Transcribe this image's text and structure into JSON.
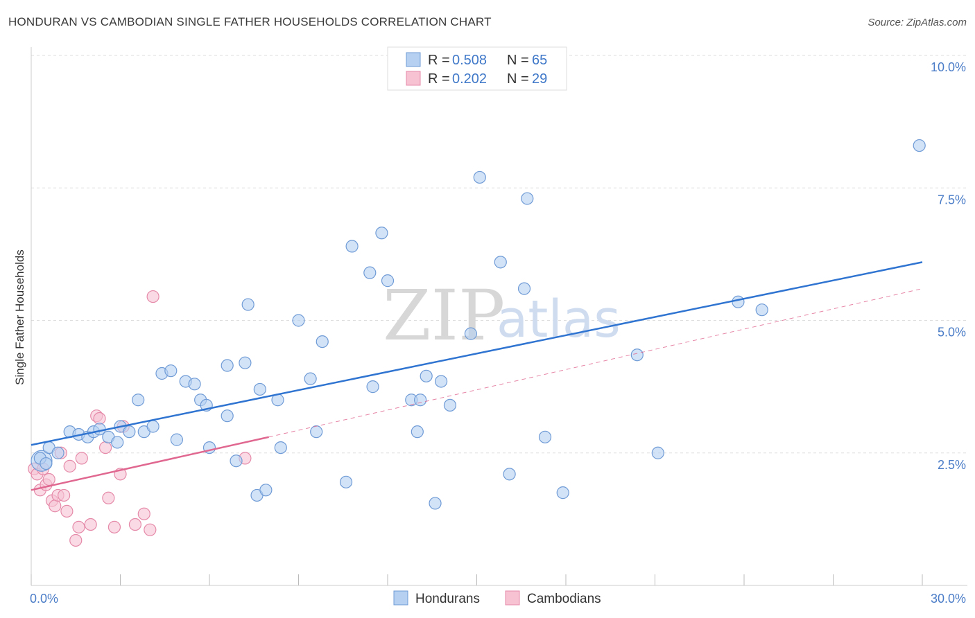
{
  "header": {
    "title": "HONDURAN VS CAMBODIAN SINGLE FATHER HOUSEHOLDS CORRELATION CHART",
    "source": "Source: ZipAtlas.com"
  },
  "watermark": {
    "zip": "ZIP",
    "atlas": "atlas"
  },
  "legend_top": [
    {
      "r_label": "R =",
      "r_value": "0.508",
      "n_label": "N =",
      "n_value": "65"
    },
    {
      "r_label": "R =",
      "r_value": "0.202",
      "n_label": "N =",
      "n_value": "29"
    }
  ],
  "legend_bottom": [
    "Hondurans",
    "Cambodians"
  ],
  "colors": {
    "blue_fill": "#b6d0f2",
    "blue_stroke": "#6f9bd6",
    "blue_line": "#2f74d0",
    "pink_fill": "#f7c3d3",
    "pink_stroke": "#e58aa8",
    "pink_line": "#e0678f",
    "grid": "#dedede",
    "tick_text": "#4a7cc7"
  },
  "chart_data": {
    "type": "scatter",
    "title": "HONDURAN VS CAMBODIAN SINGLE FATHER HOUSEHOLDS CORRELATION CHART",
    "xlabel": "",
    "ylabel": "Single Father Households",
    "xlim": [
      0,
      30
    ],
    "ylim": [
      0,
      10.5
    ],
    "x_tick_labels": [
      "0.0%",
      "30.0%"
    ],
    "y_ticks": [
      2.5,
      5.0,
      7.5,
      10.0
    ],
    "y_tick_labels": [
      "2.5%",
      "5.0%",
      "7.5%",
      "10.0%"
    ],
    "series": [
      {
        "name": "Hondurans",
        "r": 0.508,
        "n": 65,
        "trend": {
          "x": [
            0,
            30
          ],
          "y": [
            2.65,
            6.1
          ]
        },
        "points": [
          [
            0.3,
            2.4
          ],
          [
            0.5,
            2.3
          ],
          [
            0.6,
            2.6
          ],
          [
            0.9,
            2.5
          ],
          [
            1.3,
            2.9
          ],
          [
            1.6,
            2.85
          ],
          [
            1.9,
            2.8
          ],
          [
            2.1,
            2.9
          ],
          [
            2.3,
            2.95
          ],
          [
            2.6,
            2.8
          ],
          [
            2.9,
            2.7
          ],
          [
            3.0,
            3.0
          ],
          [
            3.3,
            2.9
          ],
          [
            3.6,
            3.5
          ],
          [
            3.8,
            2.9
          ],
          [
            4.1,
            3.0
          ],
          [
            4.4,
            4.0
          ],
          [
            4.7,
            4.05
          ],
          [
            4.9,
            2.75
          ],
          [
            5.2,
            3.85
          ],
          [
            5.5,
            3.8
          ],
          [
            5.7,
            3.5
          ],
          [
            5.9,
            3.4
          ],
          [
            6.0,
            2.6
          ],
          [
            6.6,
            3.2
          ],
          [
            6.6,
            4.15
          ],
          [
            6.9,
            2.35
          ],
          [
            7.2,
            4.2
          ],
          [
            7.3,
            5.3
          ],
          [
            7.6,
            1.7
          ],
          [
            7.7,
            3.7
          ],
          [
            7.9,
            1.8
          ],
          [
            8.3,
            3.5
          ],
          [
            8.4,
            2.6
          ],
          [
            9.0,
            5.0
          ],
          [
            9.4,
            3.9
          ],
          [
            9.6,
            2.9
          ],
          [
            9.8,
            4.6
          ],
          [
            10.6,
            1.95
          ],
          [
            10.8,
            6.4
          ],
          [
            11.4,
            5.9
          ],
          [
            11.5,
            3.75
          ],
          [
            11.8,
            6.65
          ],
          [
            12.0,
            5.75
          ],
          [
            12.8,
            3.5
          ],
          [
            13.0,
            2.9
          ],
          [
            13.1,
            3.5
          ],
          [
            13.3,
            3.95
          ],
          [
            13.6,
            1.55
          ],
          [
            13.8,
            3.85
          ],
          [
            14.1,
            3.4
          ],
          [
            14.8,
            4.75
          ],
          [
            15.1,
            7.7
          ],
          [
            15.8,
            6.1
          ],
          [
            16.1,
            2.1
          ],
          [
            16.6,
            5.6
          ],
          [
            16.7,
            7.3
          ],
          [
            17.3,
            2.8
          ],
          [
            17.9,
            1.75
          ],
          [
            20.4,
            4.35
          ],
          [
            21.1,
            2.5
          ],
          [
            23.8,
            5.35
          ],
          [
            24.6,
            5.2
          ],
          [
            29.9,
            8.3
          ]
        ],
        "large_point": [
          0.35,
          2.35
        ]
      },
      {
        "name": "Cambodians",
        "r": 0.202,
        "n": 29,
        "trend": {
          "x": [
            0,
            8
          ],
          "y": [
            1.8,
            2.8
          ]
        },
        "trend_extended": {
          "x": [
            8,
            30
          ],
          "y": [
            2.8,
            5.6
          ]
        },
        "points": [
          [
            0.1,
            2.2
          ],
          [
            0.2,
            2.1
          ],
          [
            0.3,
            1.8
          ],
          [
            0.4,
            2.2
          ],
          [
            0.5,
            1.9
          ],
          [
            0.6,
            2.0
          ],
          [
            0.7,
            1.6
          ],
          [
            0.8,
            1.5
          ],
          [
            0.9,
            1.7
          ],
          [
            1.0,
            2.5
          ],
          [
            1.1,
            1.7
          ],
          [
            1.2,
            1.4
          ],
          [
            1.3,
            2.25
          ],
          [
            1.5,
            0.85
          ],
          [
            1.6,
            1.1
          ],
          [
            1.7,
            2.4
          ],
          [
            2.0,
            1.15
          ],
          [
            2.2,
            3.2
          ],
          [
            2.3,
            3.15
          ],
          [
            2.5,
            2.6
          ],
          [
            2.6,
            1.65
          ],
          [
            2.8,
            1.1
          ],
          [
            3.0,
            2.1
          ],
          [
            3.1,
            3.0
          ],
          [
            3.5,
            1.15
          ],
          [
            3.8,
            1.35
          ],
          [
            4.0,
            1.05
          ],
          [
            4.1,
            5.45
          ],
          [
            7.2,
            2.4
          ]
        ]
      }
    ]
  }
}
